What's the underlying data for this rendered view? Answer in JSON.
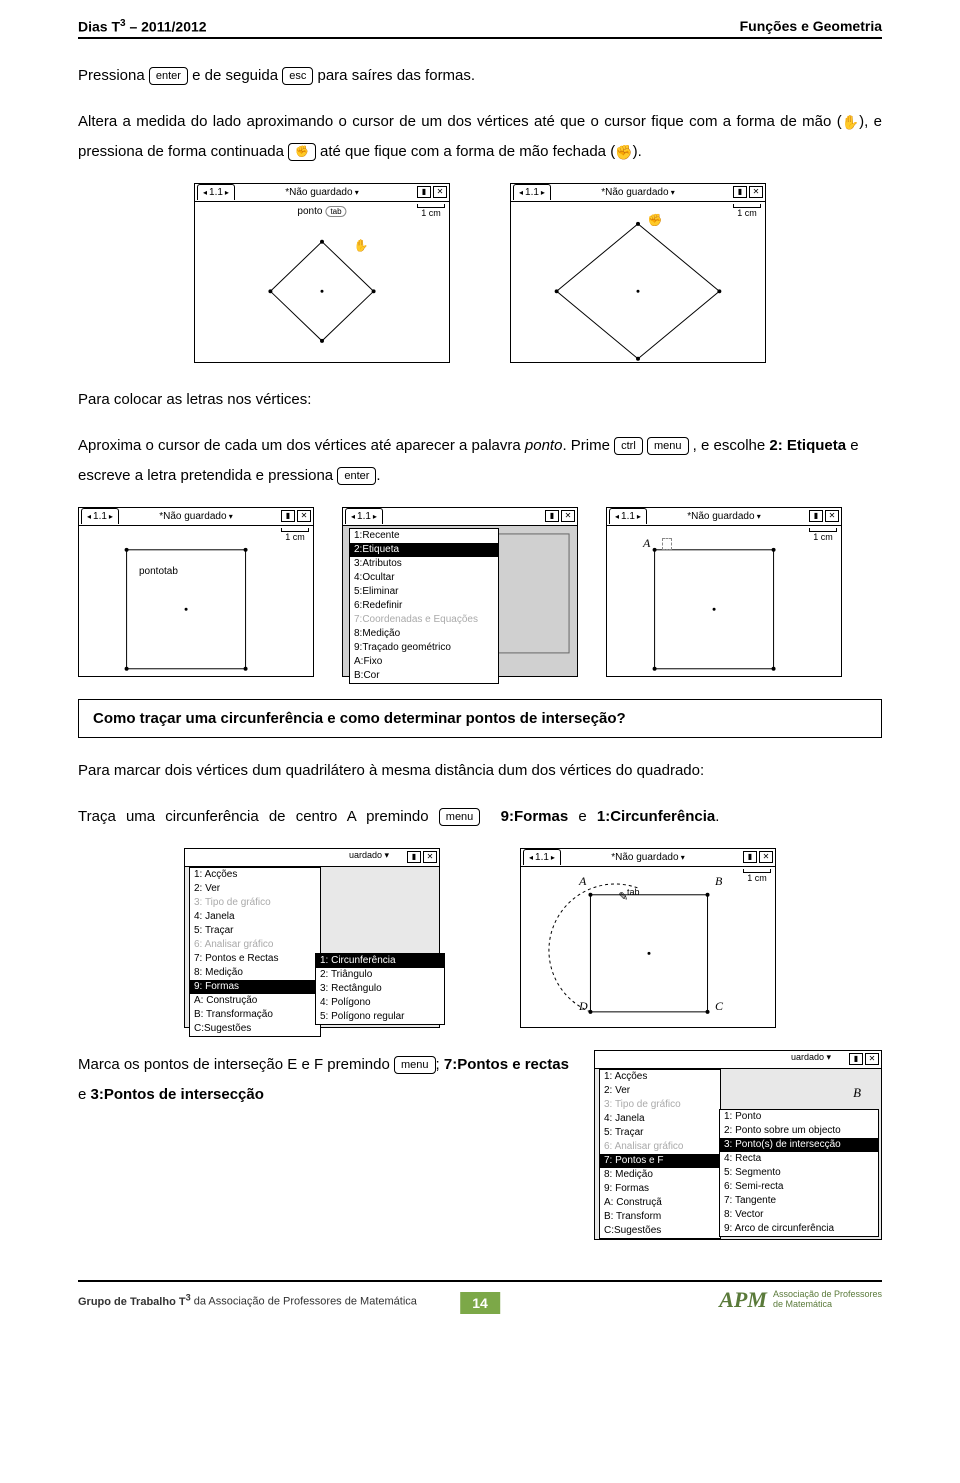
{
  "header": {
    "left_prefix": "Dias T",
    "left_sup": "3",
    "left_suffix": " – 2011/2012",
    "right": "Funções e Geometria"
  },
  "keys": {
    "enter": "enter",
    "esc": "esc",
    "ctrl": "ctrl",
    "menu": "menu"
  },
  "ti": {
    "tab": "1.1",
    "title": "*Não guardado",
    "scale": "1 cm",
    "sub_ponto": "ponto",
    "sub_tab": "tab"
  },
  "para1": {
    "t1": "Pressiona ",
    "t2": " e de seguida ",
    "t3": " para saíres das formas."
  },
  "para2": {
    "t1": "Altera a medida do lado aproximando o cursor de um dos vértices até que o cursor fique com a forma de mão (",
    "t2": "), e pressiona de forma continuada ",
    "t3": " até que fique com a forma de mão fechada (",
    "t4": ")."
  },
  "para3": {
    "t1": "Para colocar as letras nos vértices:"
  },
  "para4": {
    "t1": "Aproxima o cursor de cada um dos vértices até aparecer a palavra ",
    "t2_i": "ponto",
    "t3": ". Prime ",
    "t4": " , e escolhe ",
    "t5_b": "2: Etiqueta",
    "t6": " e escreve a letra pretendida e pressiona ",
    "t7": "."
  },
  "menu_etiqueta": {
    "items": [
      {
        "label": "1:Recente",
        "sel": false
      },
      {
        "label": "2:Etiqueta",
        "sel": true
      },
      {
        "label": "3:Atributos",
        "sel": false
      },
      {
        "label": "4:Ocultar",
        "sel": false
      },
      {
        "label": "5:Eliminar",
        "sel": false
      },
      {
        "label": "6:Redefinir",
        "sel": false
      },
      {
        "label": "7:Coordenadas e Equações",
        "sel": false,
        "dim": true
      },
      {
        "label": "8:Medição",
        "sel": false
      },
      {
        "label": "9:Traçado geométrico",
        "sel": false
      },
      {
        "label": "A:Fixo",
        "sel": false
      },
      {
        "label": "B:Cor",
        "sel": false
      }
    ]
  },
  "boxed": "Como traçar uma circunferência e como determinar pontos de interseção?",
  "para5": {
    "t1": "Para marcar dois vértices dum quadrilátero à mesma distância dum dos vértices do quadrado:"
  },
  "para6": {
    "t1": "Traça uma circunferência de centro A premindo ",
    "t2_b": "9:Formas",
    "t3": " e ",
    "t4_b": "1:Circunferência",
    "t5": "."
  },
  "menu_main": {
    "items": [
      {
        "label": "1: Acções"
      },
      {
        "label": "2: Ver"
      },
      {
        "label": "3: Tipo de gráfico",
        "dim": true
      },
      {
        "label": "4: Janela"
      },
      {
        "label": "5: Traçar"
      },
      {
        "label": "6: Analisar gráfico",
        "dim": true
      },
      {
        "label": "7: Pontos e Rectas"
      },
      {
        "label": "8: Medição"
      },
      {
        "label": "9: Formas",
        "sel": true
      },
      {
        "label": "A: Construção"
      },
      {
        "label": "B: Transformação"
      },
      {
        "label": "C:Sugestões"
      }
    ]
  },
  "menu_formas": {
    "items": [
      {
        "label": "1: Circunferência",
        "sel": true
      },
      {
        "label": "2: Triângulo"
      },
      {
        "label": "3: Rectângulo"
      },
      {
        "label": "4: Polígono"
      },
      {
        "label": "5: Polígono regular"
      }
    ]
  },
  "labels_square": {
    "A": "A",
    "B": "B",
    "C": "C",
    "D": "D"
  },
  "para7": {
    "t1": "Marca os pontos de interseção E e F premindo ",
    "t2": "; ",
    "t3_b": "7:Pontos e rectas",
    "t4": " e ",
    "t5_b": "3:Pontos de intersecção"
  },
  "menu_main2": {
    "items": [
      {
        "label": "1: Acções"
      },
      {
        "label": "2: Ver"
      },
      {
        "label": "3: Tipo de gráfico",
        "dim": true
      },
      {
        "label": "4: Janela"
      },
      {
        "label": "5: Traçar"
      },
      {
        "label": "6: Analisar gráfico",
        "dim": true
      },
      {
        "label": "7: Pontos e F",
        "sel": true
      },
      {
        "label": "8: Medição"
      },
      {
        "label": "9: Formas"
      },
      {
        "label": "A: Construçã"
      },
      {
        "label": "B: Transform"
      },
      {
        "label": "C:Sugestões"
      }
    ]
  },
  "menu_pontos": {
    "items": [
      {
        "label": "1: Ponto"
      },
      {
        "label": "2: Ponto sobre um objecto"
      },
      {
        "label": "3: Ponto(s) de intersecção",
        "sel": true
      },
      {
        "label": "4: Recta"
      },
      {
        "label": "5: Segmento"
      },
      {
        "label": "6: Semi-recta"
      },
      {
        "label": "7: Tangente"
      },
      {
        "label": "8: Vector"
      },
      {
        "label": "9: Arco de circunferência"
      }
    ]
  },
  "footer": {
    "left_prefix": "Grupo de Trabalho T",
    "left_sup": "3",
    "left_suffix": " da Associação de Professores de Matemática",
    "page": "14",
    "apm_name": "APM",
    "apm_sub": "Associação de Professores\nde Matemática"
  }
}
